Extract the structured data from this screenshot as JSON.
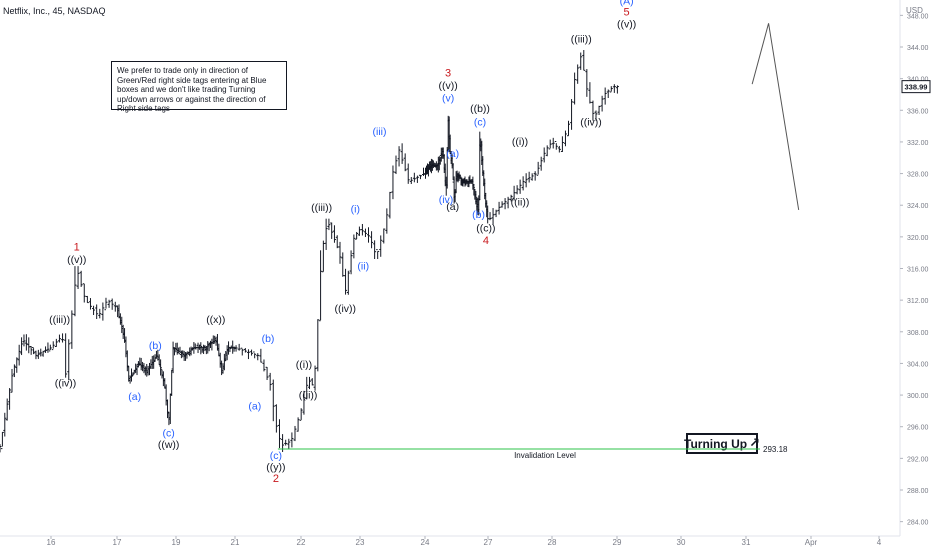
{
  "chart_data": {
    "type": "ohlc",
    "title": "Netflix, Inc., 45, NASDAQ",
    "currency": "USD",
    "ylim": [
      282,
      349
    ],
    "x_ticks": [
      "16",
      "17",
      "19",
      "21",
      "22",
      "23",
      "24",
      "27",
      "28",
      "29",
      "30",
      "31",
      "Apr",
      "4"
    ],
    "y_ticks": [
      284,
      288,
      292,
      296,
      300,
      304,
      308,
      312,
      316,
      320,
      324,
      328,
      332,
      336,
      340,
      344,
      348
    ],
    "y_tick_labels": [
      "284.00",
      "288.00",
      "292.00",
      "296.00",
      "300.00",
      "304.00",
      "308.00",
      "312.00",
      "316.00",
      "320.00",
      "324.00",
      "328.00",
      "332.00",
      "336.00",
      "340.00",
      "344.00",
      "348.00"
    ],
    "last_price": 338.99,
    "last_price_label": "338.99",
    "invalidation": {
      "value": 293.18,
      "label": "Invalidation Level",
      "value_label": "293.18"
    },
    "note": "We prefer to trade only in direction of Green/Red right side tags entering at Blue boxes and we don't like trading Turning up/down arrows or against the direction of Right side tags",
    "signal": {
      "text": "Turning Up",
      "arrow": "↗"
    },
    "projection": [
      {
        "day": 31.09,
        "price": 339.3
      },
      {
        "day": 31.33,
        "price": 347.0
      },
      {
        "day": 31.77,
        "price": 323.4
      }
    ],
    "price_path": [
      {
        "day": 15.0,
        "price": 293.5
      },
      {
        "day": 15.25,
        "price": 303
      },
      {
        "day": 15.45,
        "price": 307
      },
      {
        "day": 15.7,
        "price": 305
      },
      {
        "day": 16.0,
        "price": 306
      },
      {
        "day": 16.17,
        "price": 307.5
      },
      {
        "day": 16.22,
        "price": 302.5
      },
      {
        "day": 16.3,
        "price": 309
      },
      {
        "day": 16.39,
        "price": 316
      },
      {
        "day": 16.52,
        "price": 312
      },
      {
        "day": 16.72,
        "price": 310
      },
      {
        "day": 16.85,
        "price": 312
      },
      {
        "day": 17.0,
        "price": 311
      },
      {
        "day": 17.25,
        "price": 307
      },
      {
        "day": 17.4,
        "price": 302
      },
      {
        "day": 17.75,
        "price": 304
      },
      {
        "day": 18.0,
        "price": 303
      },
      {
        "day": 18.35,
        "price": 305
      },
      {
        "day": 18.6,
        "price": 301.5
      },
      {
        "day": 18.75,
        "price": 296.5
      },
      {
        "day": 18.9,
        "price": 306
      },
      {
        "day": 19.3,
        "price": 305
      },
      {
        "day": 19.6,
        "price": 306
      },
      {
        "day": 20.0,
        "price": 306
      },
      {
        "day": 20.35,
        "price": 307
      },
      {
        "day": 20.55,
        "price": 303
      },
      {
        "day": 20.75,
        "price": 306
      },
      {
        "day": 21.0,
        "price": 306
      },
      {
        "day": 21.35,
        "price": 305
      },
      {
        "day": 21.55,
        "price": 301
      },
      {
        "day": 21.6,
        "price": 297
      },
      {
        "day": 21.7,
        "price": 293.6
      },
      {
        "day": 21.85,
        "price": 294.2
      },
      {
        "day": 22.0,
        "price": 298
      },
      {
        "day": 22.12,
        "price": 302
      },
      {
        "day": 22.22,
        "price": 301
      },
      {
        "day": 22.35,
        "price": 318
      },
      {
        "day": 22.45,
        "price": 322
      },
      {
        "day": 22.65,
        "price": 318
      },
      {
        "day": 22.75,
        "price": 313
      },
      {
        "day": 22.9,
        "price": 320
      },
      {
        "day": 23.0,
        "price": 321
      },
      {
        "day": 23.15,
        "price": 320
      },
      {
        "day": 23.25,
        "price": 317.5
      },
      {
        "day": 23.4,
        "price": 322
      },
      {
        "day": 23.5,
        "price": 328
      },
      {
        "day": 23.6,
        "price": 331
      },
      {
        "day": 23.75,
        "price": 327
      },
      {
        "day": 24.0,
        "price": 328
      },
      {
        "day": 24.3,
        "price": 329
      },
      {
        "day": 24.6,
        "price": 329
      },
      {
        "day": 24.85,
        "price": 331
      },
      {
        "day": 25.0,
        "price": 325.5
      },
      {
        "day": 25.1,
        "price": 335
      },
      {
        "day": 25.18,
        "price": 331
      },
      {
        "day": 25.3,
        "price": 329
      },
      {
        "day": 25.4,
        "price": 324.5
      },
      {
        "day": 25.5,
        "price": 328
      },
      {
        "day": 25.8,
        "price": 327
      },
      {
        "day": 26.0,
        "price": 327
      },
      {
        "day": 26.25,
        "price": 327
      },
      {
        "day": 26.4,
        "price": 325
      },
      {
        "day": 26.55,
        "price": 323
      },
      {
        "day": 26.62,
        "price": 333
      },
      {
        "day": 26.75,
        "price": 328
      },
      {
        "day": 26.9,
        "price": 324
      },
      {
        "day": 27.0,
        "price": 322
      },
      {
        "day": 27.2,
        "price": 324
      },
      {
        "day": 27.35,
        "price": 325
      },
      {
        "day": 27.55,
        "price": 327
      },
      {
        "day": 27.75,
        "price": 328
      },
      {
        "day": 27.9,
        "price": 331
      },
      {
        "day": 28.0,
        "price": 332
      },
      {
        "day": 28.12,
        "price": 331
      },
      {
        "day": 28.25,
        "price": 334
      },
      {
        "day": 28.35,
        "price": 340
      },
      {
        "day": 28.45,
        "price": 343
      },
      {
        "day": 28.55,
        "price": 338
      },
      {
        "day": 28.65,
        "price": 335
      },
      {
        "day": 28.8,
        "price": 338
      },
      {
        "day": 28.95,
        "price": 339
      },
      {
        "day": 29.05,
        "price": 339
      }
    ],
    "wave_labels": [
      {
        "text": "1",
        "day": 16.39,
        "price": 318.8,
        "color": "red"
      },
      {
        "text": "((v))",
        "day": 16.39,
        "price": 317.2,
        "color": "black"
      },
      {
        "text": "((iii))",
        "day": 16.13,
        "price": 309.6,
        "color": "black"
      },
      {
        "text": "((iv))",
        "day": 16.22,
        "price": 301.6,
        "color": "black"
      },
      {
        "text": "(a)",
        "day": 17.6,
        "price": 299.9,
        "color": "blue"
      },
      {
        "text": "(b)",
        "day": 18.3,
        "price": 306.3,
        "color": "blue"
      },
      {
        "text": "(c)",
        "day": 18.75,
        "price": 295.3,
        "color": "blue"
      },
      {
        "text": "((w))",
        "day": 18.75,
        "price": 293.8,
        "color": "black"
      },
      {
        "text": "((x))",
        "day": 20.35,
        "price": 309.6,
        "color": "black"
      },
      {
        "text": "(a)",
        "day": 21.3,
        "price": 298.7,
        "color": "blue"
      },
      {
        "text": "(b)",
        "day": 21.5,
        "price": 307.2,
        "color": "blue"
      },
      {
        "text": "(c)",
        "day": 21.62,
        "price": 292.4,
        "color": "blue"
      },
      {
        "text": "((y))",
        "day": 21.62,
        "price": 291.0,
        "color": "black"
      },
      {
        "text": "2",
        "day": 21.62,
        "price": 289.5,
        "color": "red"
      },
      {
        "text": "((i))",
        "day": 22.05,
        "price": 303.9,
        "color": "black"
      },
      {
        "text": "((ii))",
        "day": 22.12,
        "price": 300.1,
        "color": "black"
      },
      {
        "text": "((iii))",
        "day": 22.35,
        "price": 323.8,
        "color": "black"
      },
      {
        "text": "((iv))",
        "day": 22.75,
        "price": 311.0,
        "color": "black"
      },
      {
        "text": "(i)",
        "day": 22.92,
        "price": 323.6,
        "color": "blue"
      },
      {
        "text": "(ii)",
        "day": 23.05,
        "price": 316.4,
        "color": "blue"
      },
      {
        "text": "(iii)",
        "day": 23.3,
        "price": 333.4,
        "color": "blue"
      },
      {
        "text": "3",
        "day": 25.1,
        "price": 340.8,
        "color": "red"
      },
      {
        "text": "((v))",
        "day": 25.1,
        "price": 339.2,
        "color": "black"
      },
      {
        "text": "(v)",
        "day": 25.1,
        "price": 337.6,
        "color": "blue"
      },
      {
        "text": "(a)",
        "day": 25.32,
        "price": 330.6,
        "color": "blue"
      },
      {
        "text": "(iv)",
        "day": 25.0,
        "price": 324.8,
        "color": "blue"
      },
      {
        "text": "(a)",
        "day": 25.32,
        "price": 323.9,
        "color": "black"
      },
      {
        "text": "((b))",
        "day": 26.62,
        "price": 336.3,
        "color": "black"
      },
      {
        "text": "(c)",
        "day": 26.62,
        "price": 334.6,
        "color": "blue"
      },
      {
        "text": "(b)",
        "day": 26.55,
        "price": 322.9,
        "color": "blue"
      },
      {
        "text": "((c))",
        "day": 26.9,
        "price": 321.2,
        "color": "black"
      },
      {
        "text": "4",
        "day": 26.9,
        "price": 319.6,
        "color": "red"
      },
      {
        "text": "((i))",
        "day": 27.5,
        "price": 332.1,
        "color": "black"
      },
      {
        "text": "((ii))",
        "day": 27.5,
        "price": 324.5,
        "color": "black"
      },
      {
        "text": "((iii))",
        "day": 28.45,
        "price": 345.1,
        "color": "black"
      },
      {
        "text": "((iv))",
        "day": 28.6,
        "price": 334.6,
        "color": "black"
      },
      {
        "text": "(A)",
        "day": 29.15,
        "price": 349.9,
        "color": "blue"
      },
      {
        "text": "5",
        "day": 29.15,
        "price": 348.5,
        "color": "red"
      },
      {
        "text": "((v))",
        "day": 29.15,
        "price": 347.0,
        "color": "black"
      }
    ],
    "colors": {
      "red": "#c8191e",
      "blue": "#2962ff",
      "black": "#131722",
      "invalidation_line": "#2ec34a",
      "axis_text": "#787b86",
      "price_tag": "#131722"
    }
  }
}
